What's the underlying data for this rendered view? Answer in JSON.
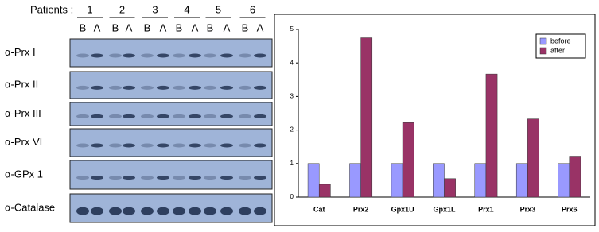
{
  "blot": {
    "patients_label": "Patients :",
    "patients": [
      "1",
      "2",
      "3",
      "4",
      "5",
      "6"
    ],
    "lanes": [
      "B",
      "A",
      "B",
      "A",
      "B",
      "A",
      "B",
      "A",
      "B",
      "A",
      "B",
      "A"
    ],
    "rows": [
      "α-Prx I",
      "α-Prx II",
      "α-Prx III",
      "α-Prx VI",
      "α-GPx 1",
      "α-Catalase"
    ]
  },
  "chart_data": {
    "type": "bar",
    "categories": [
      "Cat",
      "Prx2",
      "Gpx1U",
      "Gpx1L",
      "Prx1",
      "Prx3",
      "Prx6"
    ],
    "series": [
      {
        "name": "before",
        "color": "#9999ff",
        "values": [
          1,
          1,
          1,
          1,
          1,
          1,
          1
        ]
      },
      {
        "name": "after",
        "color": "#993366",
        "values": [
          0.38,
          4.75,
          2.22,
          0.55,
          3.67,
          2.33,
          1.22
        ]
      }
    ],
    "ylim": [
      0,
      5
    ],
    "yticks": [
      0,
      1,
      2,
      3,
      4,
      5
    ],
    "legend": "top-right"
  }
}
